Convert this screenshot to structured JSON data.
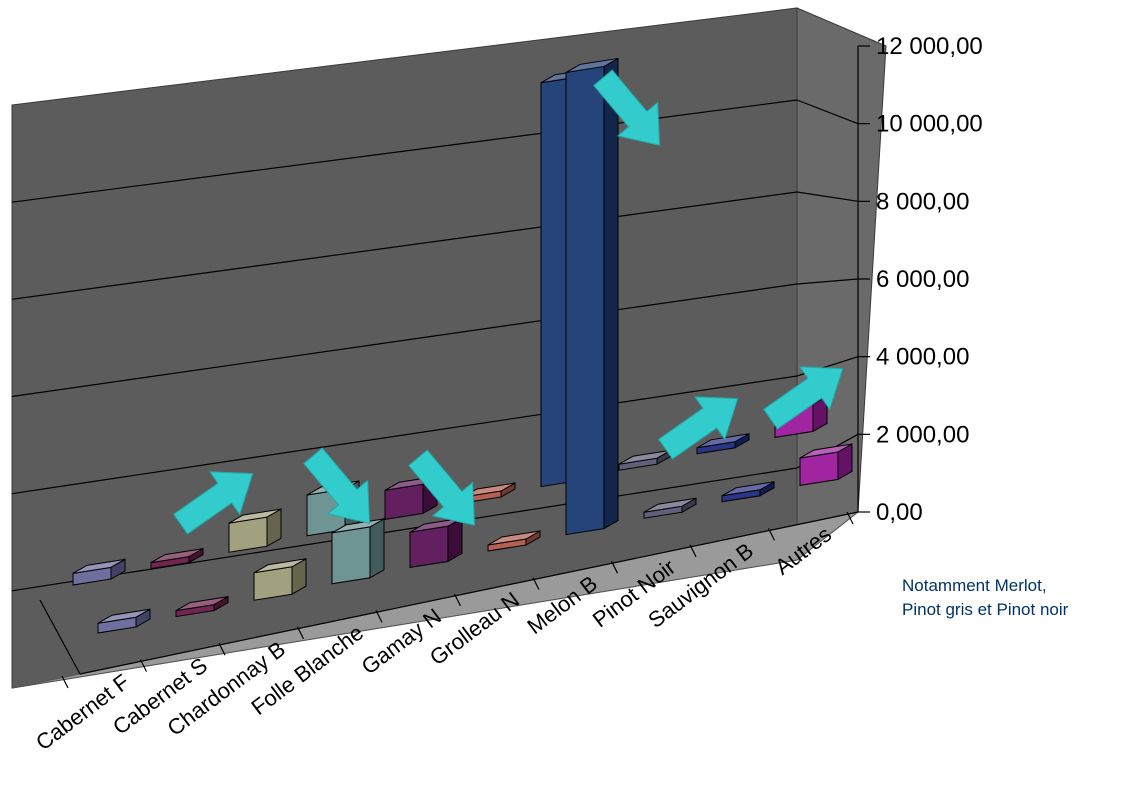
{
  "chart_data": {
    "type": "bar",
    "title": "",
    "xlabel": "",
    "ylabel": "",
    "ylim": [
      0,
      12000
    ],
    "y_ticks": [
      "0,00",
      "2 000,00",
      "4 000,00",
      "6 000,00",
      "8 000,00",
      "10 000,00",
      "12 000,00"
    ],
    "categories": [
      "Cabernet F",
      "Cabernet S",
      "Chardonnay B",
      "Folle Blanche",
      "Gamay N",
      "Grolleau N",
      "Melon B",
      "Pinot Noir",
      "Sauvignon B",
      "Autres"
    ],
    "series": [
      {
        "values": [
          250,
          50,
          700,
          1300,
          900,
          100,
          11800,
          50,
          150,
          700
        ]
      },
      {
        "values": [
          300,
          30,
          750,
          1050,
          750,
          150,
          10400,
          50,
          100,
          700
        ]
      }
    ],
    "series_colors": [
      [
        "#66669a",
        "#6a1a48",
        "#9c9c78",
        "#668e8e",
        "#5a1458",
        "#b0584a",
        "#1a3a72",
        "#575873",
        "#202a80",
        "#9c1a9c"
      ],
      [
        "#66669a",
        "#6a1a48",
        "#9c9c78",
        "#668e8e",
        "#5a1458",
        "#b0584a",
        "#1a3a72",
        "#575873",
        "#202a80",
        "#9c1a9c"
      ]
    ],
    "arrows": [
      {
        "category": "Cabernet S",
        "direction": "up"
      },
      {
        "category": "Folle Blanche",
        "direction": "down"
      },
      {
        "category": "Gamay N",
        "direction": "down"
      },
      {
        "category": "Melon B",
        "direction": "down"
      },
      {
        "category": "Sauvignon B",
        "direction": "up"
      },
      {
        "category": "Autres",
        "direction": "up"
      }
    ],
    "arrow_color": "#33cccc",
    "grid": true,
    "wall_color": "#5a5a5a",
    "floor_color": "#9a9a9a"
  },
  "annotation": {
    "line1": "Notamment Merlot,",
    "line2": "Pinot gris et Pinot noir"
  }
}
